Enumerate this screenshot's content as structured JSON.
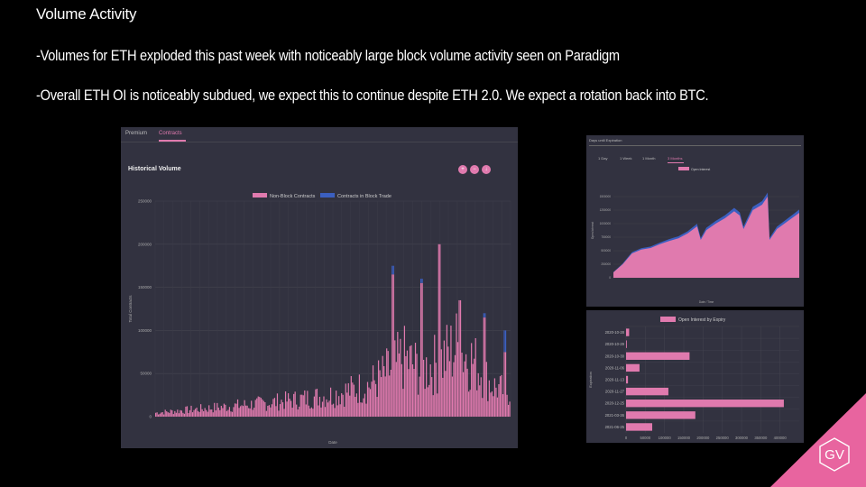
{
  "slide": {
    "title": "Volume Activity",
    "bullets": [
      "-Volumes for ETH exploded this past week with noticeably large block volume activity seen on Paradigm",
      "-Overall ETH OI is noticeably subdued, we expect this to continue despite ETH 2.0. We expect a rotation back into BTC."
    ],
    "logo_text": "GV",
    "accent_color": "#e8649f"
  },
  "panel_volume": {
    "tabs": [
      "Premium",
      "Contracts"
    ],
    "active_tab": "Contracts",
    "controls": [
      "zoom-in-icon",
      "zoom-out-icon",
      "download-icon"
    ]
  },
  "panel_oi": {
    "header": "Days until Expiration",
    "tabs": [
      "1 Day",
      "1 Week",
      "1 Month",
      "3 Months"
    ],
    "active_tab": "3 Months"
  },
  "chart_data": [
    {
      "type": "bar",
      "title": "Historical Volume",
      "xlabel": "Date",
      "ylabel": "Total Contracts",
      "ylim": [
        0,
        250000
      ],
      "yticks": [
        0,
        50000,
        100000,
        150000,
        200000,
        250000
      ],
      "legend_position": "top",
      "stacked": true,
      "series": [
        {
          "name": "Non-Block Contracts",
          "color": "#e07aae"
        },
        {
          "name": "Contracts in Block Trade",
          "color": "#3b5fc0"
        }
      ],
      "trend_points": [
        [
          0,
          5000
        ],
        [
          0.1,
          9000
        ],
        [
          0.2,
          13000
        ],
        [
          0.3,
          17000
        ],
        [
          0.4,
          22000
        ],
        [
          0.5,
          28000
        ],
        [
          0.6,
          40000
        ],
        [
          0.65,
          55000
        ],
        [
          0.7,
          75000
        ],
        [
          0.75,
          60000
        ],
        [
          0.8,
          70000
        ],
        [
          0.85,
          90000
        ],
        [
          0.9,
          70000
        ],
        [
          0.95,
          40000
        ],
        [
          1.0,
          30000
        ]
      ],
      "peaks": [
        {
          "x": 0.67,
          "value": 165000,
          "block": 10000
        },
        {
          "x": 0.75,
          "value": 155000,
          "block": 5000
        },
        {
          "x": 0.8,
          "value": 200000,
          "block": 0
        },
        {
          "x": 0.86,
          "value": 135000,
          "block": 0
        },
        {
          "x": 0.93,
          "value": 115000,
          "block": 5000
        },
        {
          "x": 0.985,
          "value": 75000,
          "block": 25000
        }
      ],
      "grid": true
    },
    {
      "type": "area",
      "xlabel": "Date / Time",
      "ylabel": "Open Interest",
      "ylim": [
        0,
        1750000
      ],
      "yticks": [
        0,
        250000,
        500000,
        750000,
        1000000,
        1250000,
        1500000
      ],
      "legend_position": "top",
      "series": [
        {
          "name": "Open Interest",
          "color": "#e07aae",
          "secondary_color": "#3b5fc0"
        }
      ],
      "points": [
        [
          0,
          100000
        ],
        [
          0.05,
          250000
        ],
        [
          0.1,
          450000
        ],
        [
          0.15,
          520000
        ],
        [
          0.2,
          550000
        ],
        [
          0.25,
          620000
        ],
        [
          0.3,
          680000
        ],
        [
          0.35,
          730000
        ],
        [
          0.4,
          820000
        ],
        [
          0.45,
          950000
        ],
        [
          0.47,
          700000
        ],
        [
          0.5,
          880000
        ],
        [
          0.55,
          1000000
        ],
        [
          0.6,
          1100000
        ],
        [
          0.65,
          1230000
        ],
        [
          0.68,
          1150000
        ],
        [
          0.7,
          900000
        ],
        [
          0.75,
          1250000
        ],
        [
          0.8,
          1350000
        ],
        [
          0.83,
          1500000
        ],
        [
          0.84,
          700000
        ],
        [
          0.88,
          900000
        ],
        [
          0.92,
          1000000
        ],
        [
          0.96,
          1100000
        ],
        [
          1.0,
          1200000
        ]
      ],
      "grid": true
    },
    {
      "type": "bar",
      "orientation": "horizontal",
      "ylabel": "Expiration",
      "xlim": [
        0,
        450000
      ],
      "xticks": [
        "0",
        "50000",
        "100000",
        "150000",
        "200000",
        "250000",
        "300000",
        "350000",
        "400000"
      ],
      "legend_position": "top",
      "series": [
        {
          "name": "Open Interest by Expiry",
          "color": "#e07aae"
        }
      ],
      "categories": [
        "2020-10-28",
        "2020-10-29",
        "2020-10-30",
        "2020-11-06",
        "2020-11-13",
        "2020-11-27",
        "2020-12-25",
        "2021-03-26",
        "2021-06-25"
      ],
      "values": [
        8000,
        2000,
        165000,
        35000,
        5000,
        110000,
        410000,
        180000,
        68000
      ],
      "grid": true
    }
  ]
}
